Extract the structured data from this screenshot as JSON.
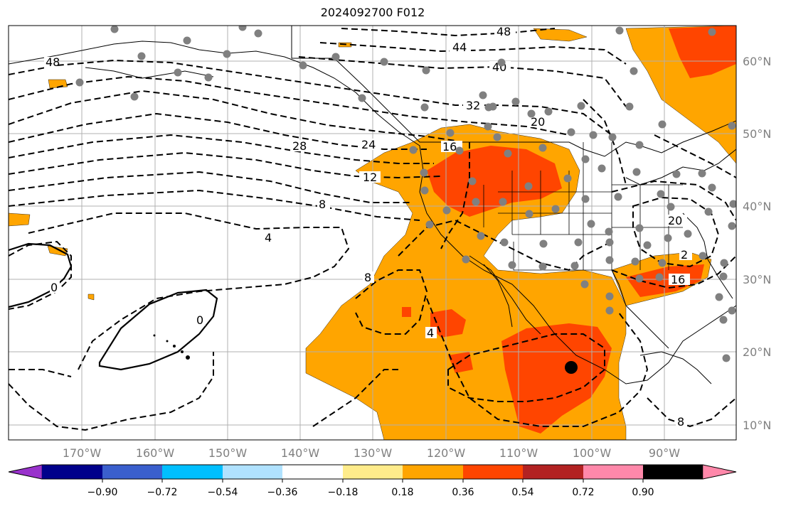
{
  "title": "2024092700 F012",
  "map": {
    "latitude_labels": [
      "60°N",
      "50°N",
      "40°N",
      "30°N",
      "20°N",
      "10°N"
    ],
    "longitude_labels": [
      "170°W",
      "160°W",
      "150°W",
      "140°W",
      "130°W",
      "120°W",
      "110°W",
      "100°W",
      "90°W"
    ],
    "contour_labels": [
      "48",
      "44",
      "40",
      "32",
      "20",
      "28",
      "24",
      "16",
      "12",
      "8",
      "4",
      "0",
      "0",
      "8",
      "4",
      "20",
      "2",
      "16",
      "8",
      "48"
    ],
    "marker": {
      "type": "storm-center",
      "color": "#000000"
    },
    "stations_color": "#808080"
  },
  "colorbar": {
    "tick_labels": [
      "−0.90",
      "−0.72",
      "−0.54",
      "−0.36",
      "−0.18",
      "0.18",
      "0.36",
      "0.54",
      "0.72",
      "0.90"
    ],
    "colors": [
      "#9932cc",
      "#00008b",
      "#3a5fcd",
      "#00bfff",
      "#b0e2ff",
      "#ffffff",
      "#ffec8b",
      "#ffa500",
      "#ff4500",
      "#b22222",
      "#ff88aa"
    ]
  }
}
